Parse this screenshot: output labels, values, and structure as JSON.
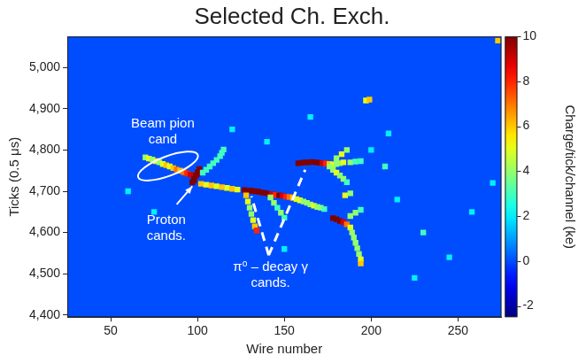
{
  "chart_data": {
    "type": "heatmap",
    "title": "Selected Ch. Exch.",
    "x_label": "Wire number",
    "y_label": "Ticks (0.5 μs)",
    "xlim": [
      25,
      275
    ],
    "xticks": [
      50,
      100,
      150,
      200,
      250
    ],
    "ylim": [
      4395,
      5075
    ],
    "yticks": [
      4400,
      4500,
      4600,
      4700,
      4800,
      4900,
      5000
    ],
    "grid": false,
    "colorbar": {
      "label": "Charge/tick/channel (ke)",
      "range": [
        -2.5,
        10
      ],
      "ticks": [
        -2,
        0,
        2,
        4,
        6,
        8,
        10
      ]
    },
    "background_value": 0,
    "annotations": [
      "Beam pion cand",
      "Proton cands.",
      "π⁰ – decay γ cands."
    ],
    "cells": [
      [
        70,
        4782,
        4
      ],
      [
        72,
        4779,
        5
      ],
      [
        74,
        4777,
        4
      ],
      [
        76,
        4773,
        5
      ],
      [
        78,
        4770,
        4
      ],
      [
        80,
        4766,
        5
      ],
      [
        82,
        4763,
        6
      ],
      [
        84,
        4760,
        5
      ],
      [
        86,
        4756,
        6
      ],
      [
        88,
        4753,
        7
      ],
      [
        90,
        4750,
        6
      ],
      [
        92,
        4746,
        7
      ],
      [
        94,
        4743,
        8
      ],
      [
        96,
        4740,
        9
      ],
      [
        97,
        4722,
        10
      ],
      [
        98,
        4726,
        10
      ],
      [
        98,
        4730,
        10
      ],
      [
        99,
        4738,
        10
      ],
      [
        100,
        4742,
        10
      ],
      [
        100,
        4746,
        10
      ],
      [
        101,
        4754,
        10
      ],
      [
        103,
        4745,
        3
      ],
      [
        105,
        4752,
        3
      ],
      [
        107,
        4760,
        3
      ],
      [
        109,
        4768,
        3
      ],
      [
        111,
        4776,
        3
      ],
      [
        113,
        4785,
        3
      ],
      [
        114,
        4793,
        3
      ],
      [
        115,
        4801,
        3
      ],
      [
        102,
        4718,
        6
      ],
      [
        105,
        4716,
        5
      ],
      [
        108,
        4714,
        6
      ],
      [
        111,
        4712,
        5
      ],
      [
        114,
        4710,
        6
      ],
      [
        117,
        4708,
        5
      ],
      [
        120,
        4706,
        6
      ],
      [
        123,
        4704,
        5
      ],
      [
        127,
        4703,
        10
      ],
      [
        129,
        4702,
        10
      ],
      [
        131,
        4701,
        10
      ],
      [
        133,
        4700,
        10
      ],
      [
        135,
        4699,
        10
      ],
      [
        137,
        4697,
        10
      ],
      [
        139,
        4696,
        10
      ],
      [
        141,
        4694,
        10
      ],
      [
        143,
        4693,
        9
      ],
      [
        145,
        4691,
        8
      ],
      [
        147,
        4690,
        10
      ],
      [
        149,
        4689,
        9
      ],
      [
        151,
        4687,
        8
      ],
      [
        153,
        4686,
        7
      ],
      [
        155,
        4684,
        6
      ],
      [
        157,
        4681,
        5
      ],
      [
        159,
        4678,
        5
      ],
      [
        161,
        4675,
        4
      ],
      [
        163,
        4672,
        4
      ],
      [
        165,
        4668,
        4
      ],
      [
        167,
        4665,
        5
      ],
      [
        169,
        4662,
        4
      ],
      [
        171,
        4660,
        4
      ],
      [
        173,
        4657,
        3
      ],
      [
        128,
        4690,
        6
      ],
      [
        129,
        4675,
        5
      ],
      [
        130,
        4660,
        4
      ],
      [
        131,
        4645,
        4
      ],
      [
        132,
        4630,
        5
      ],
      [
        133,
        4615,
        6
      ],
      [
        134,
        4605,
        8
      ],
      [
        142,
        4685,
        4
      ],
      [
        144,
        4672,
        4
      ],
      [
        146,
        4660,
        3
      ],
      [
        148,
        4648,
        4
      ],
      [
        150,
        4636,
        3
      ],
      [
        158,
        4768,
        10
      ],
      [
        160,
        4769,
        10
      ],
      [
        162,
        4770,
        10
      ],
      [
        164,
        4770,
        10
      ],
      [
        166,
        4771,
        10
      ],
      [
        168,
        4770,
        10
      ],
      [
        170,
        4769,
        10
      ],
      [
        172,
        4768,
        9
      ],
      [
        174,
        4767,
        8
      ],
      [
        176,
        4766,
        6
      ],
      [
        178,
        4765,
        5
      ],
      [
        180,
        4766,
        4
      ],
      [
        182,
        4768,
        4
      ],
      [
        184,
        4770,
        5
      ],
      [
        176,
        4760,
        4
      ],
      [
        178,
        4752,
        4
      ],
      [
        180,
        4745,
        5
      ],
      [
        182,
        4738,
        4
      ],
      [
        184,
        4730,
        4
      ],
      [
        186,
        4722,
        3
      ],
      [
        180,
        4780,
        4
      ],
      [
        183,
        4790,
        5
      ],
      [
        186,
        4800,
        4
      ],
      [
        188,
        4770,
        4
      ],
      [
        191,
        4772,
        3
      ],
      [
        194,
        4773,
        3
      ],
      [
        178,
        4635,
        10
      ],
      [
        180,
        4632,
        10
      ],
      [
        182,
        4628,
        10
      ],
      [
        184,
        4625,
        9
      ],
      [
        186,
        4620,
        7
      ],
      [
        188,
        4612,
        5
      ],
      [
        189,
        4600,
        4
      ],
      [
        190,
        4588,
        4
      ],
      [
        191,
        4575,
        4
      ],
      [
        192,
        4562,
        4
      ],
      [
        193,
        4548,
        4
      ],
      [
        194,
        4535,
        5
      ],
      [
        194,
        4525,
        6
      ],
      [
        188,
        4640,
        4
      ],
      [
        191,
        4648,
        4
      ],
      [
        194,
        4655,
        3
      ],
      [
        185,
        4690,
        5
      ],
      [
        188,
        4695,
        4
      ],
      [
        197,
        4920,
        5
      ],
      [
        199,
        4922,
        6
      ],
      [
        75,
        4650,
        2
      ],
      [
        60,
        4700,
        2
      ],
      [
        140,
        4820,
        2
      ],
      [
        230,
        4600,
        3
      ],
      [
        245,
        4540,
        2
      ],
      [
        215,
        4680,
        2
      ],
      [
        225,
        4490,
        2
      ],
      [
        165,
        4880,
        2
      ],
      [
        270,
        4720,
        2
      ],
      [
        210,
        4840,
        2
      ],
      [
        120,
        4850,
        2
      ],
      [
        150,
        4560,
        2
      ],
      [
        208,
        4760,
        3
      ],
      [
        200,
        4800,
        2
      ],
      [
        273,
        5065,
        6
      ],
      [
        258,
        4650,
        2
      ]
    ]
  }
}
